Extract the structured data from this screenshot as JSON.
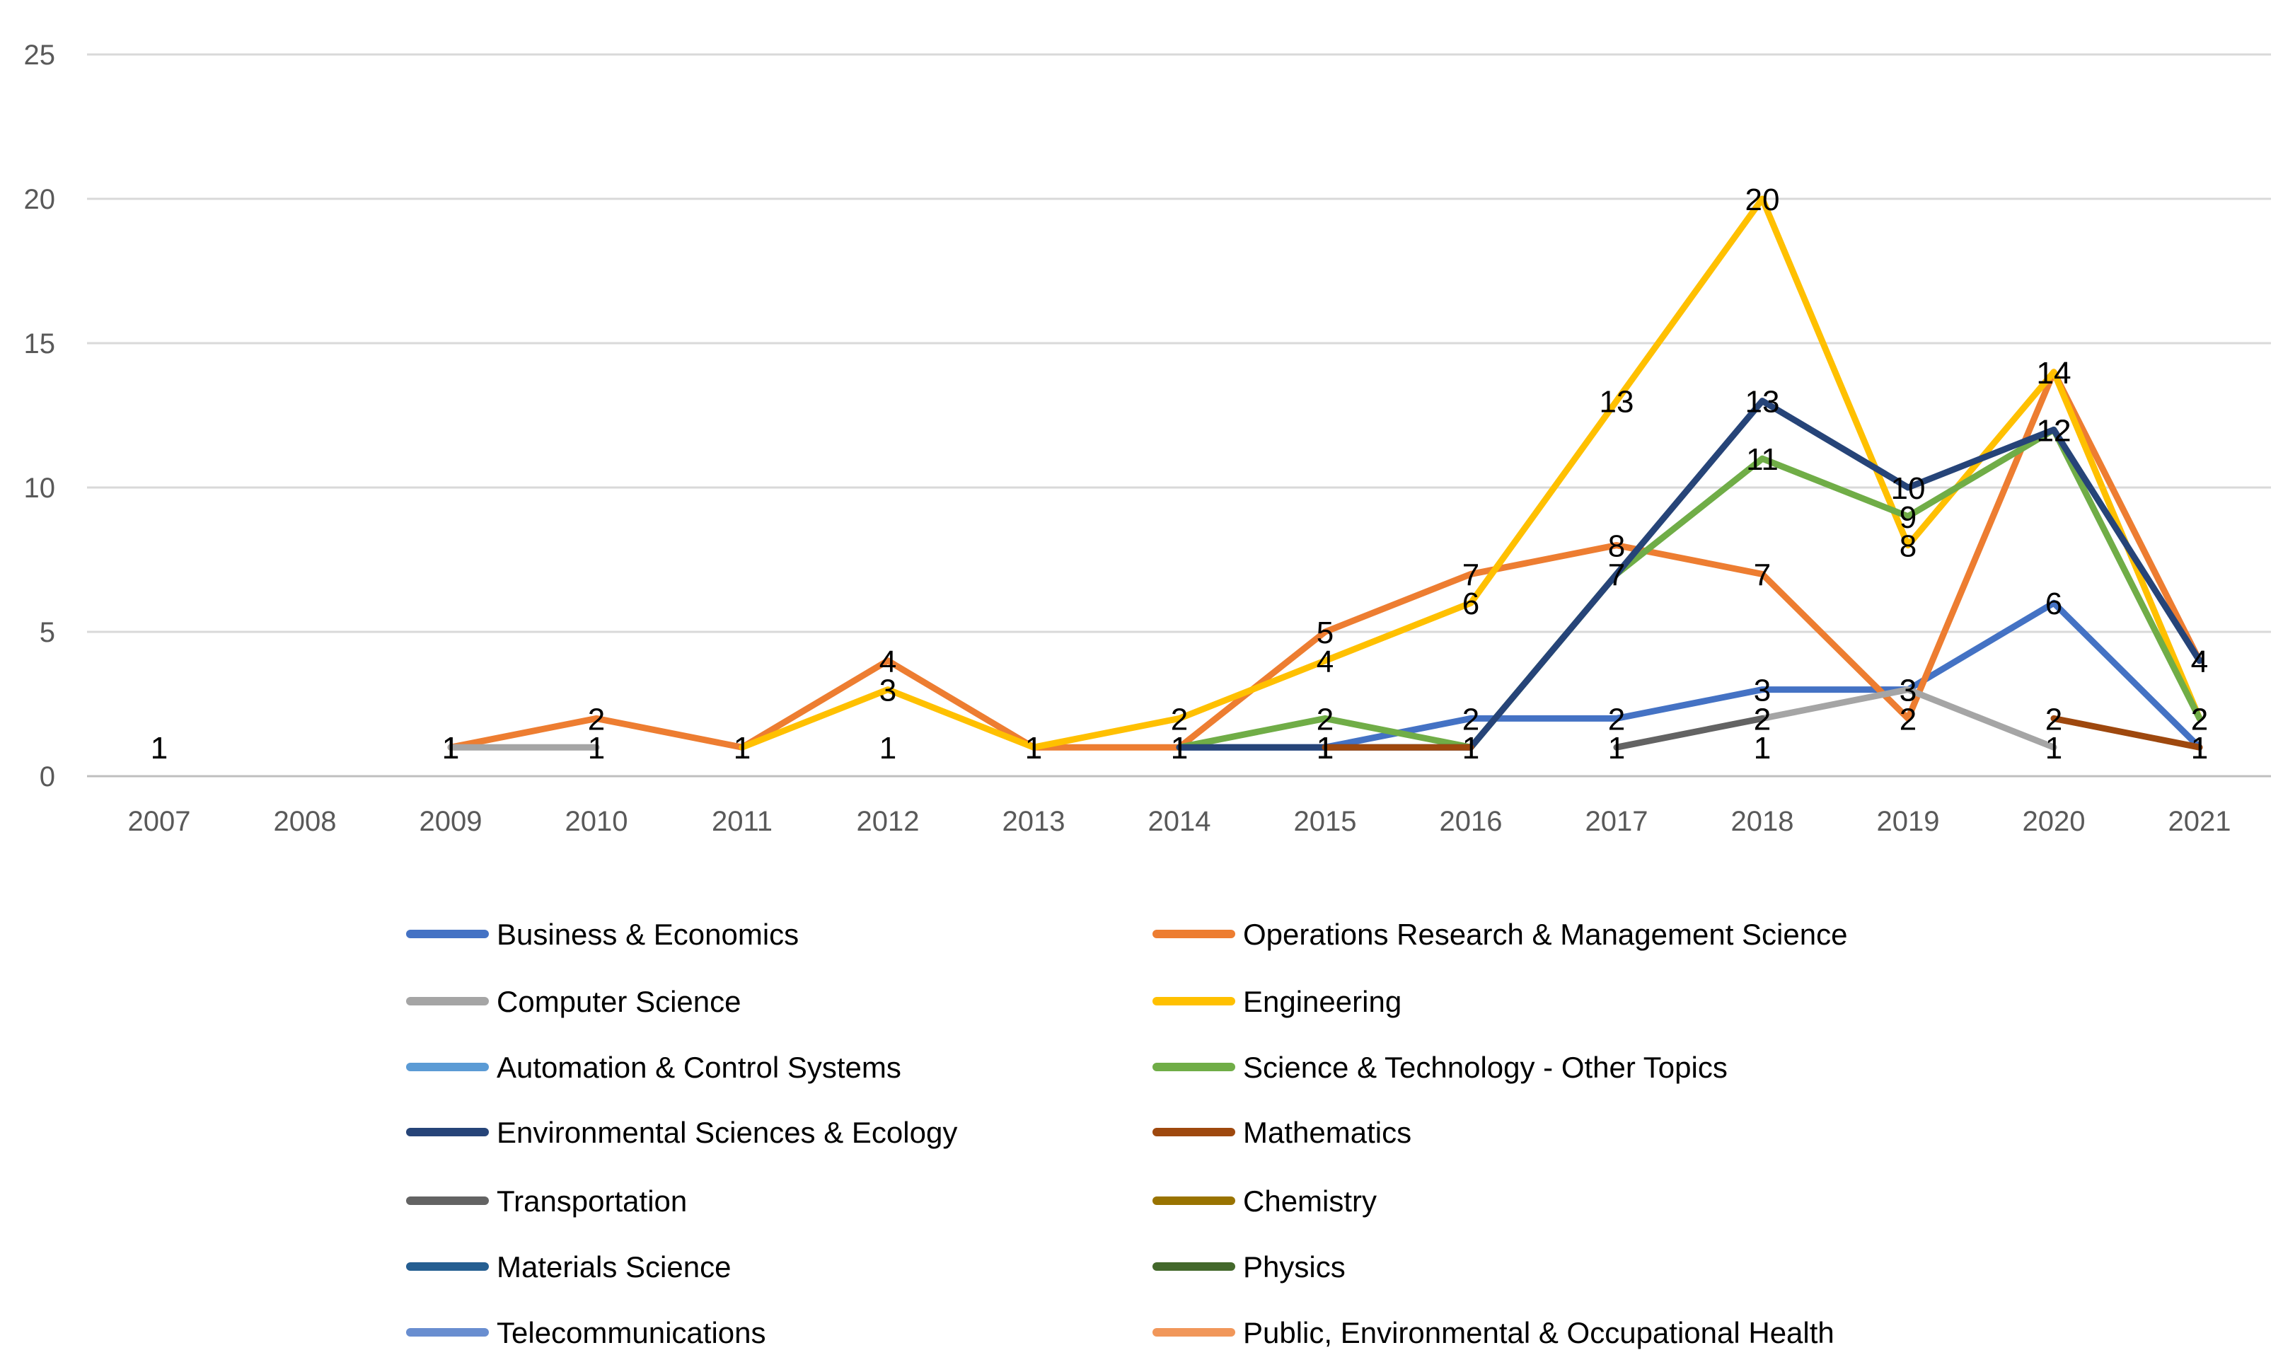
{
  "chart_data": {
    "type": "line",
    "title": "",
    "xlabel": "",
    "ylabel": "",
    "x": [
      "2007",
      "2008",
      "2009",
      "2010",
      "2011",
      "2012",
      "2013",
      "2014",
      "2015",
      "2016",
      "2017",
      "2018",
      "2019",
      "2020",
      "2021"
    ],
    "ylim": [
      0,
      25
    ],
    "yticks": [
      0,
      5,
      10,
      15,
      20,
      25
    ],
    "grid": true,
    "legend": "bottom",
    "series": [
      {
        "name": "Business & Economics",
        "color": "#4472C4",
        "values": [
          null,
          null,
          null,
          null,
          null,
          null,
          null,
          1,
          1,
          2,
          2,
          3,
          3,
          6,
          1
        ],
        "labels": [
          null,
          null,
          null,
          null,
          null,
          null,
          null,
          "1",
          "1",
          "2",
          "2",
          "3",
          "3",
          "6",
          "1"
        ]
      },
      {
        "name": "Operations Research & Management Science",
        "color": "#ED7D31",
        "values": [
          null,
          null,
          1,
          2,
          1,
          4,
          1,
          1,
          5,
          7,
          8,
          7,
          2,
          14,
          4
        ],
        "labels": [
          null,
          null,
          "1",
          "2",
          "1",
          "4",
          "1",
          "1",
          "5",
          "7",
          "8",
          "7",
          "2",
          "14",
          "4"
        ]
      },
      {
        "name": "Computer Science",
        "color": "#A5A5A5",
        "values": [
          1,
          null,
          1,
          1,
          null,
          null,
          null,
          null,
          null,
          null,
          null,
          2,
          3,
          1,
          null
        ],
        "labels": [
          "1",
          null,
          "1",
          "1",
          null,
          null,
          null,
          null,
          null,
          null,
          null,
          "2",
          "3",
          "1",
          null
        ]
      },
      {
        "name": "Engineering",
        "color": "#FFC000",
        "values": [
          1,
          null,
          1,
          null,
          1,
          3,
          1,
          2,
          4,
          6,
          13,
          20,
          8,
          14,
          2
        ],
        "labels": [
          "1",
          null,
          "1",
          null,
          "1",
          "3",
          "1",
          "2",
          "4",
          "6",
          "13",
          "20",
          "8",
          "14",
          "2"
        ]
      },
      {
        "name": "Automation & Control Systems",
        "color": "#5B9BD5",
        "values": [
          null,
          null,
          null,
          null,
          null,
          null,
          null,
          null,
          null,
          null,
          null,
          null,
          null,
          null,
          null
        ],
        "labels": [
          null,
          null,
          null,
          null,
          null,
          "1",
          null,
          null,
          null,
          null,
          null,
          "1",
          null,
          null,
          null
        ]
      },
      {
        "name": "Science & Technology - Other Topics",
        "color": "#70AD47",
        "values": [
          null,
          null,
          null,
          null,
          null,
          null,
          null,
          1,
          2,
          1,
          7,
          11,
          9,
          12,
          2
        ],
        "labels": [
          null,
          null,
          null,
          null,
          null,
          null,
          null,
          null,
          "2",
          null,
          null,
          "11",
          "9",
          "12",
          "2"
        ]
      },
      {
        "name": "Environmental Sciences & Ecology",
        "color": "#264478",
        "values": [
          null,
          null,
          null,
          null,
          null,
          null,
          null,
          1,
          1,
          1,
          7,
          13,
          10,
          12,
          4
        ],
        "labels": [
          null,
          null,
          null,
          null,
          null,
          null,
          null,
          "1",
          "1",
          "1",
          "7",
          "13",
          "10",
          "12",
          "4"
        ]
      },
      {
        "name": "Mathematics",
        "color": "#9E480E",
        "values": [
          null,
          null,
          null,
          null,
          null,
          null,
          null,
          null,
          1,
          1,
          null,
          null,
          null,
          2,
          1
        ],
        "labels": [
          null,
          null,
          null,
          null,
          null,
          null,
          null,
          null,
          "1",
          "1",
          null,
          null,
          null,
          "2",
          "1"
        ]
      },
      {
        "name": "Transportation",
        "color": "#636363",
        "values": [
          null,
          null,
          null,
          null,
          null,
          null,
          null,
          null,
          null,
          null,
          1,
          2,
          null,
          null,
          null
        ],
        "labels": [
          null,
          null,
          null,
          null,
          null,
          null,
          null,
          null,
          null,
          null,
          "1",
          "2",
          null,
          null,
          null
        ]
      },
      {
        "name": "Chemistry",
        "color": "#997300",
        "values": [
          null,
          null,
          null,
          null,
          null,
          null,
          null,
          null,
          null,
          null,
          null,
          null,
          null,
          null,
          null
        ],
        "labels": [
          null,
          null,
          null,
          null,
          null,
          null,
          null,
          null,
          null,
          null,
          null,
          "1",
          null,
          null,
          null
        ]
      },
      {
        "name": "Materials Science",
        "color": "#255E91",
        "values": [
          null,
          null,
          null,
          null,
          null,
          null,
          null,
          null,
          null,
          null,
          null,
          null,
          null,
          null,
          null
        ],
        "labels": [
          null,
          null,
          null,
          null,
          null,
          null,
          null,
          null,
          null,
          null,
          null,
          null,
          null,
          null,
          null
        ]
      },
      {
        "name": "Physics",
        "color": "#43682B",
        "values": [
          null,
          null,
          null,
          null,
          null,
          null,
          null,
          null,
          null,
          null,
          null,
          null,
          null,
          null,
          null
        ],
        "labels": [
          null,
          null,
          null,
          null,
          null,
          null,
          null,
          null,
          null,
          null,
          null,
          null,
          null,
          null,
          null
        ]
      },
      {
        "name": "Telecommunications",
        "color": "#698ED0",
        "values": [
          null,
          null,
          null,
          null,
          null,
          null,
          null,
          null,
          null,
          null,
          null,
          null,
          null,
          null,
          null
        ],
        "labels": [
          null,
          null,
          null,
          null,
          null,
          null,
          null,
          null,
          null,
          null,
          null,
          null,
          null,
          null,
          null
        ]
      },
      {
        "name": "Public, Environmental & Occupational Health",
        "color": "#F1975A",
        "values": [
          null,
          null,
          null,
          null,
          null,
          null,
          null,
          null,
          null,
          null,
          null,
          null,
          null,
          null,
          null
        ],
        "labels": [
          null,
          null,
          null,
          null,
          null,
          null,
          null,
          null,
          null,
          null,
          null,
          null,
          null,
          null,
          null
        ]
      }
    ]
  }
}
